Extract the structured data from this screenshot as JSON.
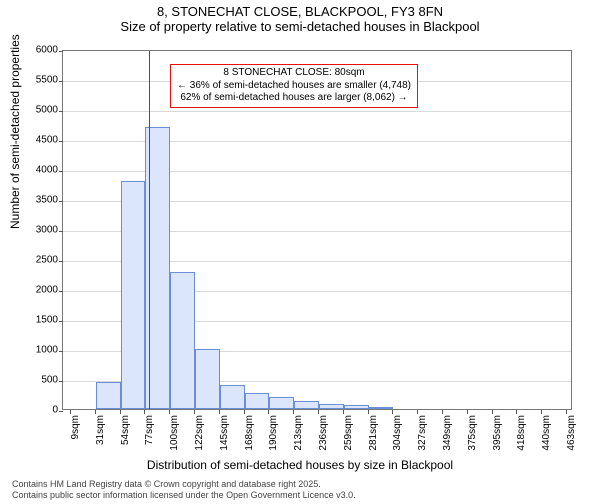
{
  "title": {
    "line1": "8, STONECHAT CLOSE, BLACKPOOL, FY3 8FN",
    "line2": "Size of property relative to semi-detached houses in Blackpool"
  },
  "ylabel": "Number of semi-detached properties",
  "xlabel": "Distribution of semi-detached houses by size in Blackpool",
  "chart": {
    "type": "histogram",
    "ylim": [
      0,
      6000
    ],
    "ytick_step": 500,
    "bar_outline_color": "#6a8fd6",
    "bar_fill_color": "#dbe5fb",
    "grid_color": "#d9d9d9",
    "border_color": "#777777",
    "bins_start": 9,
    "bin_width": 22.7,
    "xticks": [
      "9sqm",
      "31sqm",
      "54sqm",
      "77sqm",
      "100sqm",
      "122sqm",
      "145sqm",
      "168sqm",
      "190sqm",
      "213sqm",
      "236sqm",
      "259sqm",
      "281sqm",
      "304sqm",
      "327sqm",
      "349sqm",
      "375sqm",
      "395sqm",
      "418sqm",
      "440sqm",
      "463sqm"
    ],
    "counts": [
      0,
      450,
      3800,
      4700,
      2280,
      1000,
      400,
      260,
      200,
      130,
      90,
      60,
      30,
      0,
      0,
      0,
      0,
      0,
      0,
      0,
      0
    ],
    "marker_line_color": "#e01212",
    "marker_value": 80
  },
  "annotation": {
    "line1": "8 STONECHAT CLOSE: 80sqm",
    "line2": "← 36% of semi-detached houses are smaller (4,748)",
    "line3": "62% of semi-detached houses are larger (8,062) →",
    "border_color": "#e01212"
  },
  "credits": {
    "line1": "Contains HM Land Registry data © Crown copyright and database right 2025.",
    "line2": "Contains public sector information licensed under the Open Government Licence v3.0."
  }
}
